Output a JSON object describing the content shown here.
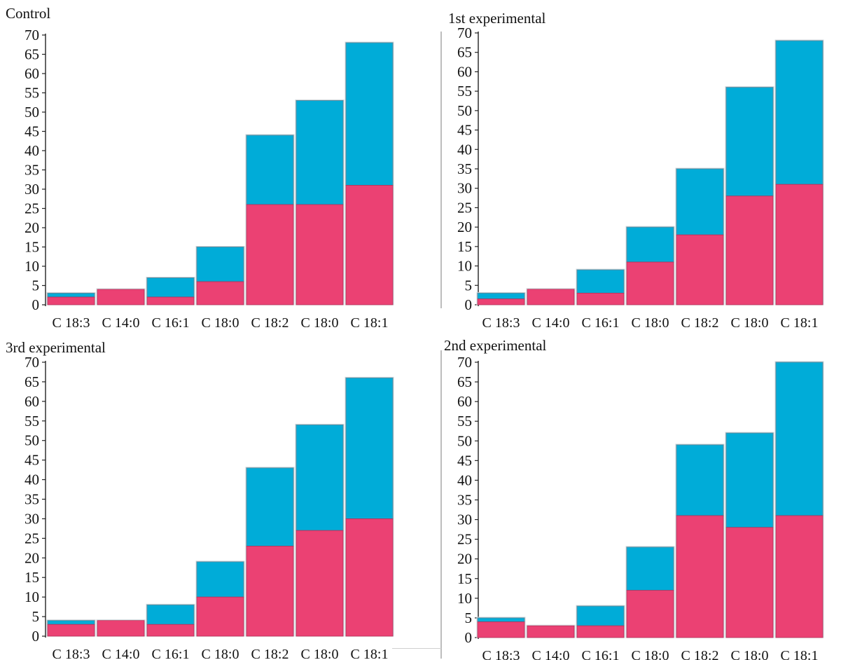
{
  "chart_data": [
    {
      "type": "bar",
      "title": "Control",
      "categories": [
        "C 18:3",
        "C 14:0",
        "C 16:1",
        "C 18:0",
        "C 18:2",
        "C 18:0",
        "C 18:1"
      ],
      "series": [
        {
          "values": [
            2,
            4,
            2,
            6,
            26,
            26,
            31
          ]
        },
        {
          "values": [
            1,
            0,
            5,
            9,
            18,
            27,
            37
          ]
        }
      ],
      "y_ticks": [
        "0",
        "5",
        "10",
        "15",
        "20",
        "25",
        "30",
        "35",
        "40",
        "45",
        "50",
        "55",
        "60",
        "65",
        "70"
      ],
      "ylim": [
        0,
        70
      ],
      "colors": {
        "bottom": "#eb4173",
        "top": "#00acd8"
      }
    },
    {
      "type": "bar",
      "title": "1st experimental",
      "categories": [
        "C 18:3",
        "C 14:0",
        "C 16:1",
        "C 18:0",
        "C 18:2",
        "C 18:0",
        "C 18:1"
      ],
      "series": [
        {
          "values": [
            1.5,
            4,
            3,
            11,
            18,
            28,
            31
          ]
        },
        {
          "values": [
            1.5,
            0,
            6,
            9,
            17,
            28,
            37
          ]
        }
      ],
      "y_ticks": [
        "0",
        "5",
        "10",
        "15",
        "20",
        "25",
        "30",
        "35",
        "40",
        "45",
        "50",
        "55",
        "60",
        "65",
        "70"
      ],
      "ylim": [
        0,
        70
      ],
      "colors": {
        "bottom": "#eb4173",
        "top": "#00acd8"
      }
    },
    {
      "type": "bar",
      "title": "3rd experimental",
      "categories": [
        "C 18:3",
        "C 14:0",
        "C 16:1",
        "C 18:0",
        "C 18:2",
        "C 18:0",
        "C 18:1"
      ],
      "series": [
        {
          "values": [
            3,
            4,
            3,
            10,
            23,
            27,
            30
          ]
        },
        {
          "values": [
            1,
            0,
            5,
            9,
            20,
            27,
            36
          ]
        }
      ],
      "y_ticks": [
        "0",
        "5",
        "10",
        "15",
        "20",
        "25",
        "30",
        "35",
        "40",
        "45",
        "50",
        "55",
        "60",
        "65",
        "70"
      ],
      "ylim": [
        0,
        70
      ],
      "colors": {
        "bottom": "#eb4173",
        "top": "#00acd8"
      }
    },
    {
      "type": "bar",
      "title": "2nd experimental",
      "categories": [
        "C 18:3",
        "C 14:0",
        "C 16:1",
        "C 18:0",
        "C 18:2",
        "C 18:0",
        "C 18:1"
      ],
      "series": [
        {
          "values": [
            4,
            3,
            3,
            12,
            31,
            28,
            31
          ]
        },
        {
          "values": [
            1,
            0,
            5,
            11,
            18,
            24,
            39
          ]
        }
      ],
      "y_ticks": [
        "0",
        "5",
        "10",
        "15",
        "20",
        "25",
        "30",
        "35",
        "40",
        "45",
        "50",
        "55",
        "60",
        "65",
        "70"
      ],
      "ylim": [
        0,
        70
      ],
      "colors": {
        "bottom": "#eb4173",
        "top": "#00acd8"
      }
    }
  ]
}
